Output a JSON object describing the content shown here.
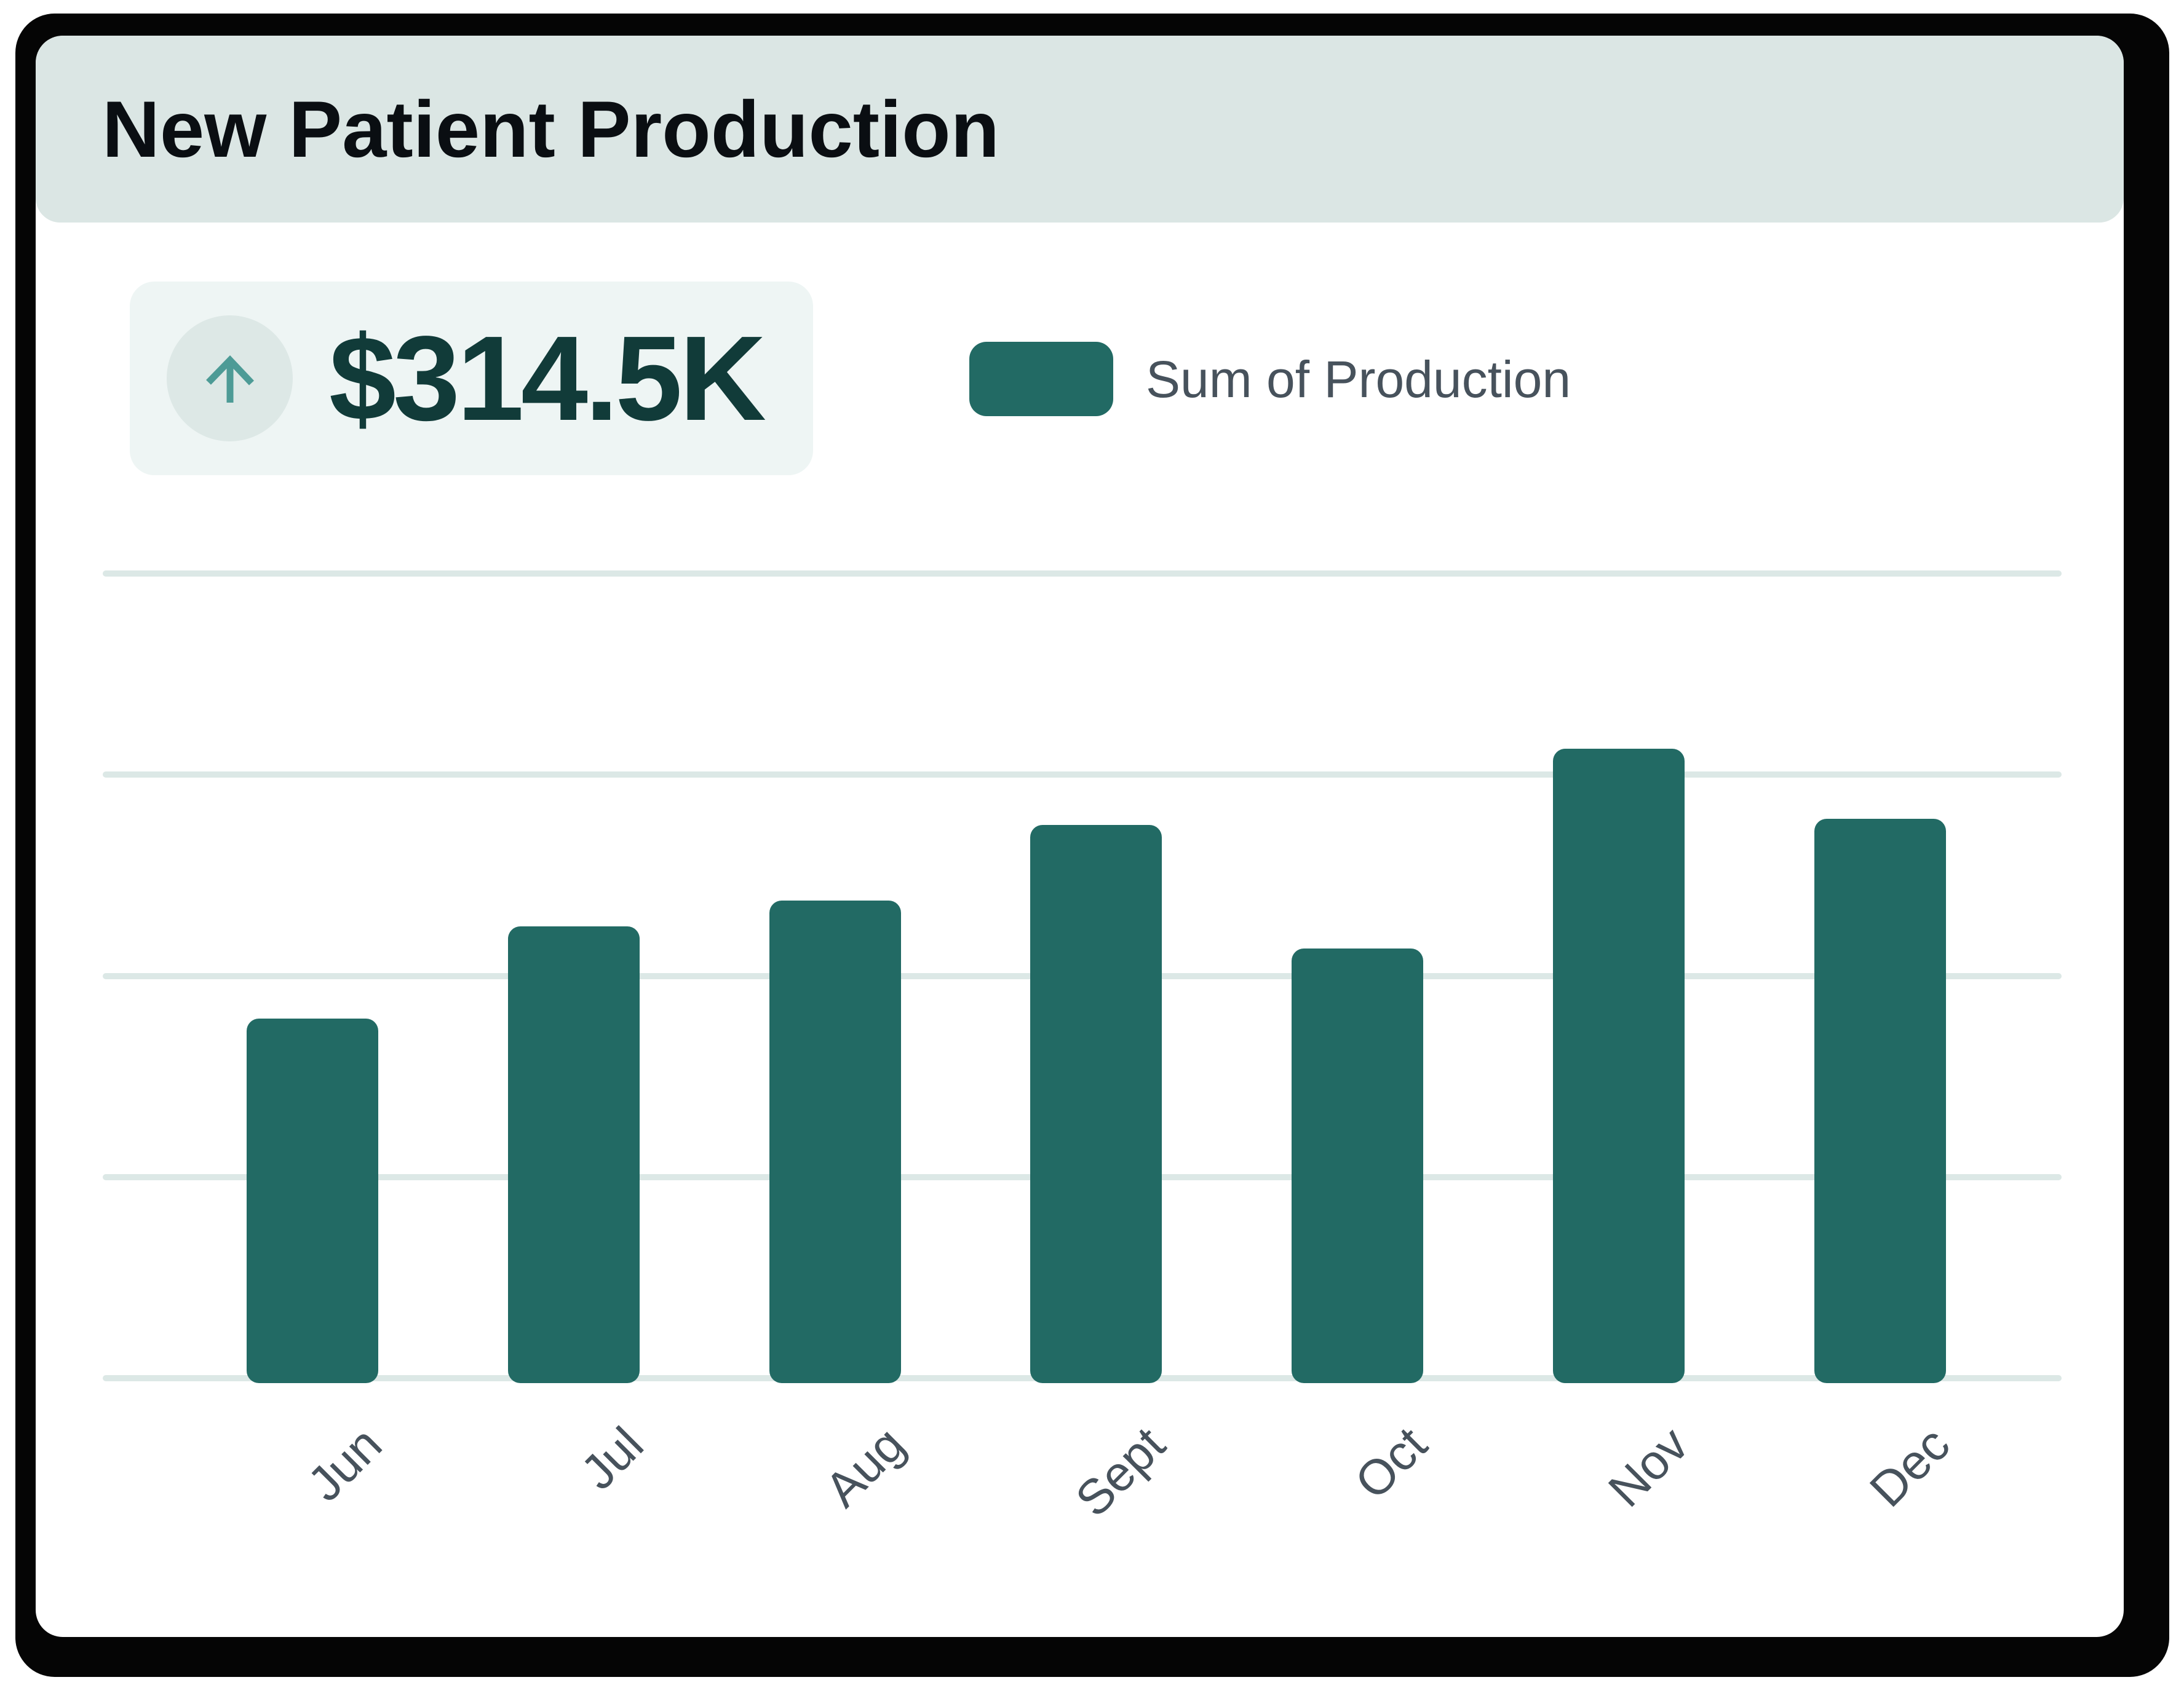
{
  "card": {
    "title": "New Patient Production"
  },
  "kpi": {
    "value": "$314.5K",
    "icon": "arrow-up-icon"
  },
  "legend": [
    {
      "label": "Sum of Production",
      "color": "#226a64"
    }
  ],
  "colors": {
    "frame": "#050505",
    "card_bg": "#ffffff",
    "header_bg": "#dbe6e4",
    "title_text": "#0a0e12",
    "chip_bg": "#eef5f4",
    "icon_circle_bg": "#dde8e6",
    "arrow": "#4d9b96",
    "kpi_text": "#113b39",
    "bar": "#226a64",
    "gridline": "#dce8e6",
    "axis_label": "#47525c",
    "legend_text": "#47525c"
  },
  "chart_data": {
    "type": "bar",
    "title": "New Patient Production",
    "categories": [
      "Jun",
      "Jul",
      "Aug",
      "Sept",
      "Oct",
      "Nov",
      "Dec"
    ],
    "series": [
      {
        "name": "Sum of Production",
        "values_usd_thousands_estimated": [
          32.8,
          41.1,
          43.4,
          50.2,
          39.1,
          57.1,
          50.8
        ]
      }
    ],
    "total_label": "$314.5K",
    "bar_color": "#226a64",
    "legend_position": "top",
    "x_axis": {
      "label_rotation_deg": -45,
      "tick_labels": [
        "Jun",
        "Jul",
        "Aug",
        "Sept",
        "Oct",
        "Nov",
        "Dec"
      ]
    },
    "y_axis": {
      "tick_labels_visible": false,
      "gridline_count": 5,
      "estimated_gridline_step_usd_thousands": 18.1,
      "ylim_usd_thousands": [
        0,
        72.5
      ]
    },
    "note": "No numeric y-axis labels shown; per-month values estimated from bar heights so they total $314.5K."
  }
}
